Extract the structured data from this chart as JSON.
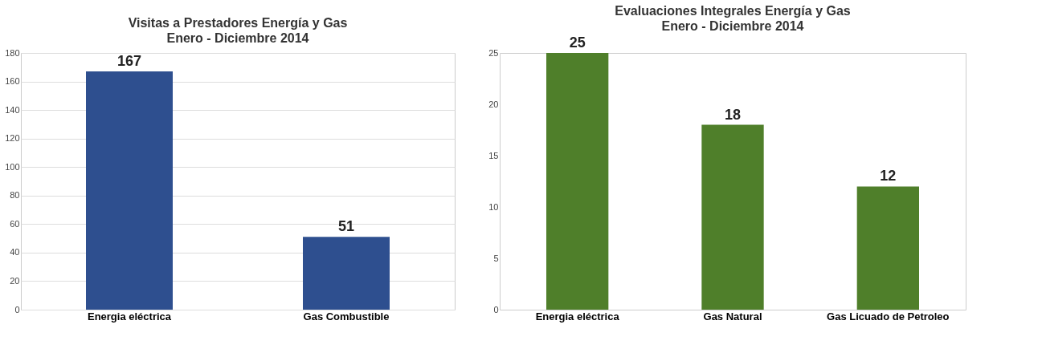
{
  "chart_data": [
    {
      "type": "bar",
      "title": "Visitas a Prestadores Energía y Gas",
      "subtitle": "Enero - Diciembre 2014",
      "categories": [
        "Energia eléctrica",
        "Gas Combustible"
      ],
      "values": [
        167,
        51
      ],
      "color": "#2e4f8f",
      "ylim": [
        0,
        180
      ],
      "yticks": [
        0,
        20,
        40,
        60,
        80,
        100,
        120,
        140,
        160,
        180
      ],
      "grid": "y",
      "data_labels": true
    },
    {
      "type": "bar",
      "title": "Evaluaciones Integrales Energía y Gas",
      "subtitle": "Enero - Diciembre 2014",
      "categories": [
        "Energia eléctrica",
        "Gas Natural",
        "Gas Licuado de Petroleo"
      ],
      "values": [
        25,
        18,
        12
      ],
      "color": "#4f7f2a",
      "ylim": [
        0,
        25
      ],
      "yticks": [
        0,
        5,
        10,
        15,
        20,
        25
      ],
      "grid": false,
      "data_labels": true
    }
  ]
}
